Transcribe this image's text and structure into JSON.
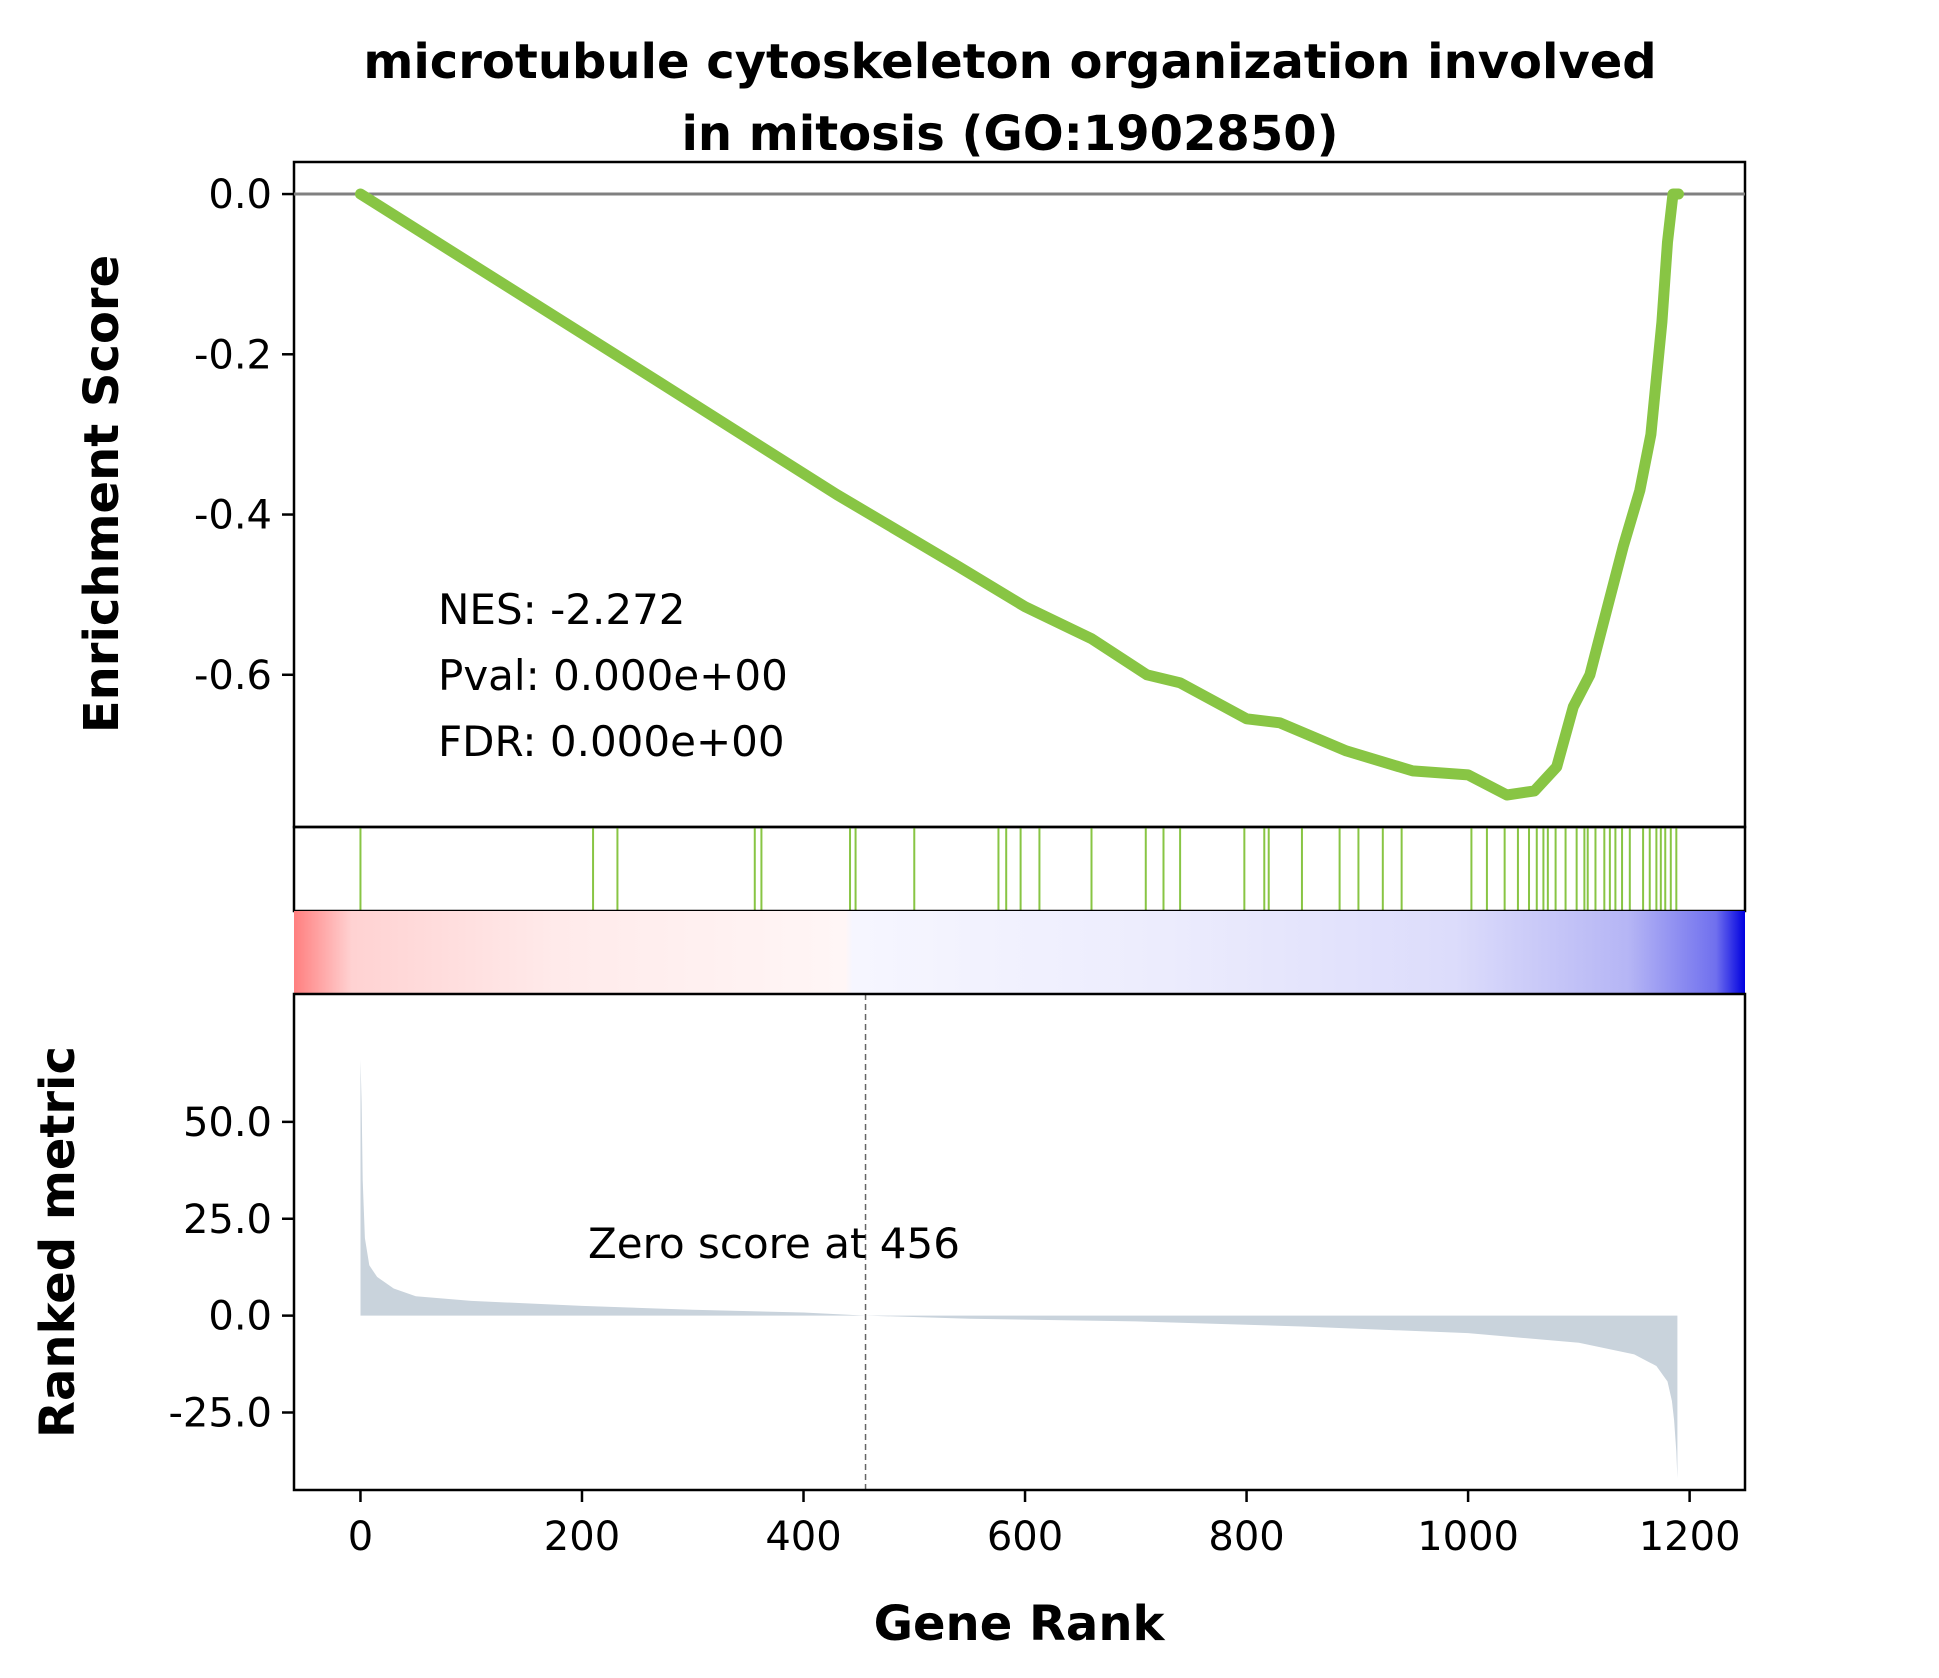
{
  "chart_data": {
    "type": "line",
    "title_line1": "microtubule cytoskeleton organization involved",
    "title_line2": "in mitosis (GO:1902850)",
    "colors": {
      "es_line": "#88c544",
      "hits": "#88c544",
      "metric_fill": "#c9d3dc",
      "zero_line": "#808080"
    },
    "xlabel": "Gene Rank",
    "xlim": [
      -60,
      1250
    ],
    "xticks": [
      0,
      200,
      400,
      600,
      800,
      1000,
      1200
    ],
    "xtick_labels": [
      "0",
      "200",
      "400",
      "600",
      "800",
      "1000",
      "1200"
    ],
    "enrichment": {
      "ylabel": "Enrichment Score",
      "ylim": [
        -0.79,
        0.04
      ],
      "yticks": [
        0.0,
        -0.2,
        -0.4,
        -0.6
      ],
      "ytick_labels": [
        "0.0",
        "-0.2",
        "-0.4",
        "-0.6"
      ],
      "points": [
        [
          0,
          0.0
        ],
        [
          270,
          -0.235
        ],
        [
          430,
          -0.375
        ],
        [
          540,
          -0.465
        ],
        [
          600,
          -0.515
        ],
        [
          660,
          -0.555
        ],
        [
          710,
          -0.6
        ],
        [
          740,
          -0.61
        ],
        [
          800,
          -0.655
        ],
        [
          830,
          -0.66
        ],
        [
          890,
          -0.695
        ],
        [
          950,
          -0.72
        ],
        [
          1000,
          -0.725
        ],
        [
          1035,
          -0.75
        ],
        [
          1060,
          -0.745
        ],
        [
          1080,
          -0.715
        ],
        [
          1095,
          -0.64
        ],
        [
          1110,
          -0.6
        ],
        [
          1125,
          -0.52
        ],
        [
          1140,
          -0.44
        ],
        [
          1155,
          -0.37
        ],
        [
          1165,
          -0.3
        ],
        [
          1175,
          -0.16
        ],
        [
          1180,
          -0.06
        ],
        [
          1185,
          0.0
        ],
        [
          1190,
          0.0
        ]
      ],
      "annotation": [
        "NES: -2.272",
        "Pval: 0.000e+00",
        "FDR: 0.000e+00"
      ]
    },
    "hits": [
      0,
      210,
      232,
      356,
      362,
      442,
      447,
      500,
      576,
      583,
      596,
      613,
      660,
      709,
      725,
      740,
      798,
      816,
      820,
      850,
      884,
      901,
      923,
      940,
      1003,
      1017,
      1033,
      1045,
      1055,
      1062,
      1068,
      1072,
      1079,
      1088,
      1098,
      1105,
      1108,
      1115,
      1123,
      1128,
      1133,
      1139,
      1146,
      1158,
      1164,
      1170,
      1174,
      1178,
      1183,
      1188
    ],
    "ranked_metric": {
      "ylabel": "Ranked metric",
      "ylim": [
        -45,
        83
      ],
      "yticks": [
        50.0,
        25.0,
        0.0,
        -25.0
      ],
      "ytick_labels": [
        "50.0",
        "25.0",
        "0.0",
        "-25.0"
      ],
      "zero_score_rank": 456,
      "annotation": "Zero score at 456",
      "points": [
        [
          0,
          0
        ],
        [
          0,
          66
        ],
        [
          1,
          55
        ],
        [
          2,
          35
        ],
        [
          4,
          20
        ],
        [
          8,
          13
        ],
        [
          15,
          10
        ],
        [
          30,
          7
        ],
        [
          50,
          5
        ],
        [
          100,
          3.8
        ],
        [
          200,
          2.5
        ],
        [
          300,
          1.5
        ],
        [
          400,
          0.8
        ],
        [
          456,
          0
        ],
        [
          550,
          -0.8
        ],
        [
          700,
          -1.5
        ],
        [
          850,
          -2.8
        ],
        [
          1000,
          -4.5
        ],
        [
          1100,
          -7
        ],
        [
          1150,
          -10
        ],
        [
          1170,
          -13
        ],
        [
          1180,
          -17
        ],
        [
          1184,
          -22
        ],
        [
          1186,
          -27
        ],
        [
          1188,
          -35
        ],
        [
          1189,
          -42
        ],
        [
          1189,
          0
        ]
      ]
    }
  }
}
